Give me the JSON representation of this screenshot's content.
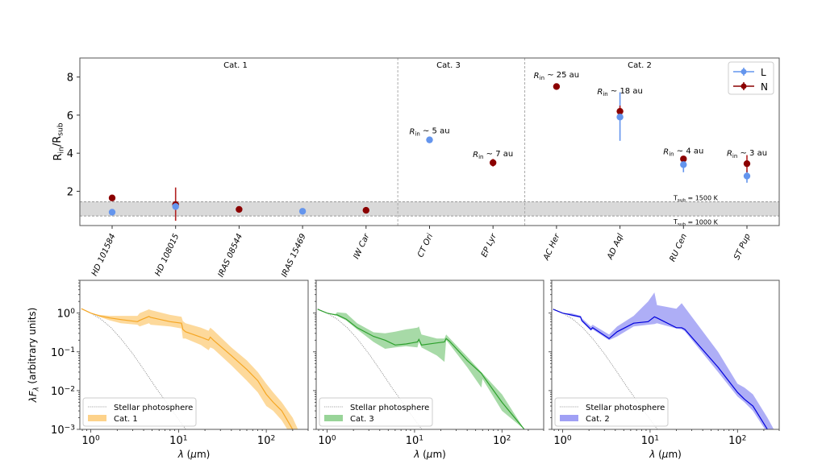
{
  "chart_data": [
    {
      "type": "scatter",
      "id": "rin-rsub",
      "ylabel": "R_in/R_sub",
      "ylabel_main": "R",
      "ylabel_sub1": "in",
      "ylabel_mid": "/R",
      "ylabel_sub2": "sub",
      "ylim": [
        0.2,
        9.0
      ],
      "yticks": [
        2,
        4,
        6,
        8
      ],
      "categories": [
        "HD 101584",
        "HD 108015",
        "IRAS 08544",
        "IRAS 15469",
        "IW Car",
        "CT Ori",
        "EP Lyr",
        "AC Her",
        "AD Aql",
        "RU Cen",
        "ST Pup"
      ],
      "groups": [
        {
          "label": "Cat. 1",
          "from": 0,
          "to": 4
        },
        {
          "label": "Cat. 3",
          "from": 5,
          "to": 6
        },
        {
          "label": "Cat. 2",
          "from": 7,
          "to": 10
        }
      ],
      "band": {
        "lower": 0.7,
        "upper": 1.45,
        "upper_label": "T_sub = 1500 K",
        "lower_label": "T_sub = 1000 K",
        "label_main": "T",
        "label_sub": "sub",
        "upper_value": " = 1500 K",
        "lower_value": " = 1000 K"
      },
      "series": [
        {
          "name": "L",
          "color": "#6495ed",
          "values": [
            0.9,
            1.2,
            null,
            0.95,
            null,
            4.7,
            null,
            null,
            5.9,
            3.4,
            2.8
          ],
          "errors": [
            null,
            null,
            null,
            null,
            null,
            null,
            null,
            null,
            [
              4.65,
              7.2
            ],
            [
              3.0,
              3.7
            ],
            [
              2.45,
              3.1
            ]
          ]
        },
        {
          "name": "N",
          "color": "#8b0000",
          "values": [
            1.65,
            1.3,
            1.05,
            null,
            1.0,
            null,
            3.5,
            7.5,
            6.2,
            3.7,
            3.45
          ],
          "errors": [
            null,
            [
              0.45,
              2.2
            ],
            null,
            null,
            null,
            null,
            [
              3.3,
              3.7
            ],
            null,
            [
              5.9,
              6.5
            ],
            [
              3.55,
              3.85
            ],
            [
              3.0,
              3.9
            ]
          ]
        }
      ],
      "annotations": [
        {
          "cat": 5,
          "y": 5.0,
          "prefix": "R",
          "sub": "in",
          "text": " ~ 5 au"
        },
        {
          "cat": 6,
          "y": 3.8,
          "prefix": "R",
          "sub": "in",
          "text": " ~ 7 au"
        },
        {
          "cat": 7,
          "y": 7.95,
          "prefix": "R",
          "sub": "in",
          "text": " ~ 25 au"
        },
        {
          "cat": 8,
          "y": 7.1,
          "prefix": "R",
          "sub": "in",
          "text": " ~ 18 au"
        },
        {
          "cat": 9,
          "y": 3.95,
          "prefix": "R",
          "sub": "in",
          "text": " ~ 4 au"
        },
        {
          "cat": 10,
          "y": 3.85,
          "prefix": "R",
          "sub": "in",
          "text": " ~ 3 au"
        }
      ],
      "legend": {
        "position": "top-right",
        "entries": [
          "L",
          "N"
        ]
      }
    },
    {
      "type": "area",
      "id": "sed-cat1",
      "xlabel": "λ (μm)",
      "ylabel": "λF_λ (arbitrary units)",
      "xscale": "log",
      "yscale": "log",
      "xlim": [
        0.75,
        300
      ],
      "ylim": [
        0.001,
        7
      ],
      "xticks": [
        {
          "v": 1,
          "label": "10",
          "exp": "0"
        },
        {
          "v": 10,
          "label": "10",
          "exp": "1"
        },
        {
          "v": 100,
          "label": "10",
          "exp": "2"
        }
      ],
      "yticks": [
        {
          "v": 1,
          "label": "10",
          "exp": "0"
        },
        {
          "v": 0.1,
          "label": "10",
          "exp": "−1"
        },
        {
          "v": 0.01,
          "label": "10",
          "exp": "−2"
        },
        {
          "v": 0.001,
          "label": "10",
          "exp": "−3"
        }
      ],
      "color": "#f5a623",
      "fill": "#fdd28a",
      "legend_label": "Cat. 1",
      "photosphere_label": "Stellar photosphere",
      "legend": {
        "position": "bottom-left"
      },
      "x": [
        0.78,
        1.0,
        1.25,
        1.65,
        2.2,
        3.4,
        3.6,
        4.6,
        4.8,
        8,
        10.8,
        11.2,
        12,
        18,
        22,
        23,
        25,
        40,
        60,
        80,
        100,
        120,
        150,
        200,
        230
      ],
      "y": [
        1.3,
        1.0,
        0.85,
        0.75,
        0.68,
        0.6,
        0.65,
        0.82,
        0.78,
        0.6,
        0.55,
        0.38,
        0.33,
        0.24,
        0.2,
        0.24,
        0.2,
        0.08,
        0.035,
        0.018,
        0.008,
        0.005,
        0.003,
        0.001,
        0.0006
      ],
      "y_low": [
        1.3,
        1.0,
        0.8,
        0.65,
        0.55,
        0.5,
        0.45,
        0.55,
        0.5,
        0.45,
        0.4,
        0.22,
        0.22,
        0.15,
        0.11,
        0.13,
        0.12,
        0.045,
        0.018,
        0.009,
        0.004,
        0.003,
        0.0017,
        0.0006,
        0.0004
      ],
      "y_high": [
        1.3,
        1.0,
        0.9,
        0.85,
        0.85,
        0.85,
        1.0,
        1.25,
        1.2,
        0.9,
        0.8,
        0.62,
        0.55,
        0.42,
        0.35,
        0.42,
        0.36,
        0.13,
        0.06,
        0.03,
        0.015,
        0.009,
        0.005,
        0.002,
        0.001
      ]
    },
    {
      "type": "area",
      "id": "sed-cat3",
      "xlabel": "λ (μm)",
      "xscale": "log",
      "yscale": "log",
      "xlim": [
        0.75,
        300
      ],
      "ylim": [
        0.001,
        7
      ],
      "xticks": [
        {
          "v": 1,
          "label": "10",
          "exp": "0"
        },
        {
          "v": 10,
          "label": "10",
          "exp": "1"
        },
        {
          "v": 100,
          "label": "10",
          "exp": "2"
        }
      ],
      "color": "#2ca02c",
      "fill": "#98d498",
      "legend_label": "Cat. 3",
      "photosphere_label": "Stellar photosphere",
      "legend": {
        "position": "bottom-left"
      },
      "x": [
        0.78,
        1.0,
        1.25,
        1.3,
        1.65,
        2.2,
        3.4,
        4.6,
        6,
        8,
        10.8,
        11.2,
        12,
        18,
        22,
        23,
        25,
        40,
        58,
        60,
        100,
        180
      ],
      "y": [
        1.25,
        1.0,
        0.9,
        0.9,
        0.7,
        0.42,
        0.25,
        0.2,
        0.15,
        0.16,
        0.18,
        0.21,
        0.15,
        0.17,
        0.18,
        0.22,
        0.19,
        0.06,
        0.028,
        0.025,
        0.005,
        0.001
      ],
      "y_low": [
        1.25,
        1.0,
        0.9,
        0.85,
        0.65,
        0.38,
        0.18,
        0.12,
        0.13,
        0.14,
        0.13,
        0.18,
        0.13,
        0.08,
        0.055,
        0.2,
        0.16,
        0.04,
        0.012,
        0.02,
        0.003,
        0.001
      ],
      "y_high": [
        1.25,
        1.0,
        0.95,
        1.05,
        1.0,
        0.55,
        0.32,
        0.3,
        0.33,
        0.38,
        0.42,
        0.45,
        0.28,
        0.22,
        0.22,
        0.28,
        0.23,
        0.075,
        0.03,
        0.028,
        0.008,
        0.001
      ]
    },
    {
      "type": "area",
      "id": "sed-cat2",
      "xlabel": "λ (μm)",
      "xscale": "log",
      "yscale": "log",
      "xlim": [
        0.75,
        300
      ],
      "ylim": [
        0.001,
        7
      ],
      "xticks": [
        {
          "v": 1,
          "label": "10",
          "exp": "0"
        },
        {
          "v": 10,
          "label": "10",
          "exp": "1"
        },
        {
          "v": 100,
          "label": "10",
          "exp": "2"
        }
      ],
      "color": "#0000dd",
      "fill": "#a0a0f5",
      "legend_label": "Cat. 2",
      "photosphere_label": "Stellar photosphere",
      "legend": {
        "position": "bottom-left"
      },
      "x": [
        0.78,
        1.0,
        1.25,
        1.6,
        1.65,
        2.1,
        2.2,
        3.4,
        4.2,
        6.5,
        9.5,
        11.2,
        12,
        20,
        23,
        25,
        60,
        100,
        120,
        150,
        220,
        260
      ],
      "y": [
        1.25,
        1.0,
        0.9,
        0.8,
        0.65,
        0.38,
        0.42,
        0.22,
        0.33,
        0.55,
        0.6,
        0.8,
        0.75,
        0.42,
        0.42,
        0.38,
        0.04,
        0.009,
        0.006,
        0.004,
        0.001,
        0.0005
      ],
      "y_low": [
        1.25,
        1.0,
        0.85,
        0.75,
        0.6,
        0.35,
        0.38,
        0.2,
        0.25,
        0.45,
        0.5,
        0.52,
        0.55,
        0.4,
        0.38,
        0.34,
        0.03,
        0.007,
        0.005,
        0.003,
        0.0008,
        0.0004
      ],
      "y_high": [
        1.25,
        1.0,
        1.0,
        0.85,
        0.75,
        0.45,
        0.5,
        0.28,
        0.45,
        0.85,
        2.0,
        3.4,
        1.6,
        1.3,
        1.8,
        1.4,
        0.1,
        0.015,
        0.012,
        0.008,
        0.002,
        0.001
      ]
    }
  ],
  "photosphere": {
    "x": [
      0.78,
      1.0,
      1.3,
      1.7,
      2.2,
      3.0,
      4.0,
      5.5,
      7.5,
      10,
      13,
      18
    ],
    "y": [
      1.3,
      1.0,
      0.7,
      0.42,
      0.22,
      0.09,
      0.035,
      0.012,
      0.0045,
      0.0018,
      0.0008,
      0.0003
    ]
  }
}
